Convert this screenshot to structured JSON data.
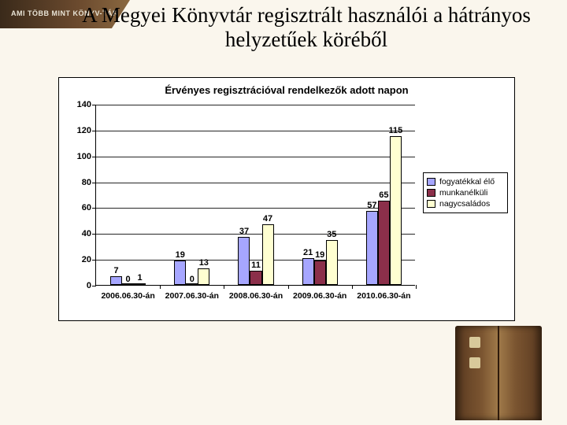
{
  "banner": {
    "text": "AMI TÖBB MINT KÖNYV-TÁR"
  },
  "title": "A Megyei Könyvtár regisztrált használói a hátrányos helyzetűek köréből",
  "chart": {
    "type": "bar",
    "title": "Érvényes regisztrációval rendelkezők adott napon",
    "title_fontsize": 13,
    "background_color": "#ffffff",
    "axis_color": "#000000",
    "grid_color": "#000000",
    "ylim": [
      0,
      140
    ],
    "ytick_step": 20,
    "yticks": [
      0,
      20,
      40,
      60,
      80,
      100,
      120,
      140
    ],
    "ytick_fontsize": 11,
    "categories": [
      "2006.06.30-án",
      "2007.06.30-án",
      "2008.06.30-án",
      "2009.06.30-án",
      "2010.06.30-án"
    ],
    "xtick_fontsize": 10.5,
    "series": [
      {
        "name": "fogyatékkal élő",
        "color": "#a6a6ff",
        "values": [
          7,
          19,
          37,
          21,
          57
        ]
      },
      {
        "name": "munkanélküli",
        "color": "#8b2f4a",
        "values": [
          0,
          0,
          11,
          19,
          65
        ]
      },
      {
        "name": "nagycsaládos",
        "color": "#ffffd1",
        "values": [
          1,
          13,
          47,
          35,
          115
        ]
      }
    ],
    "bar_width_rel": 0.185,
    "data_label_fontsize": 11,
    "legend": {
      "position": "right",
      "border_color": "#000000",
      "fontsize": 10.5
    }
  },
  "slide_background_color": "#faf6ed"
}
